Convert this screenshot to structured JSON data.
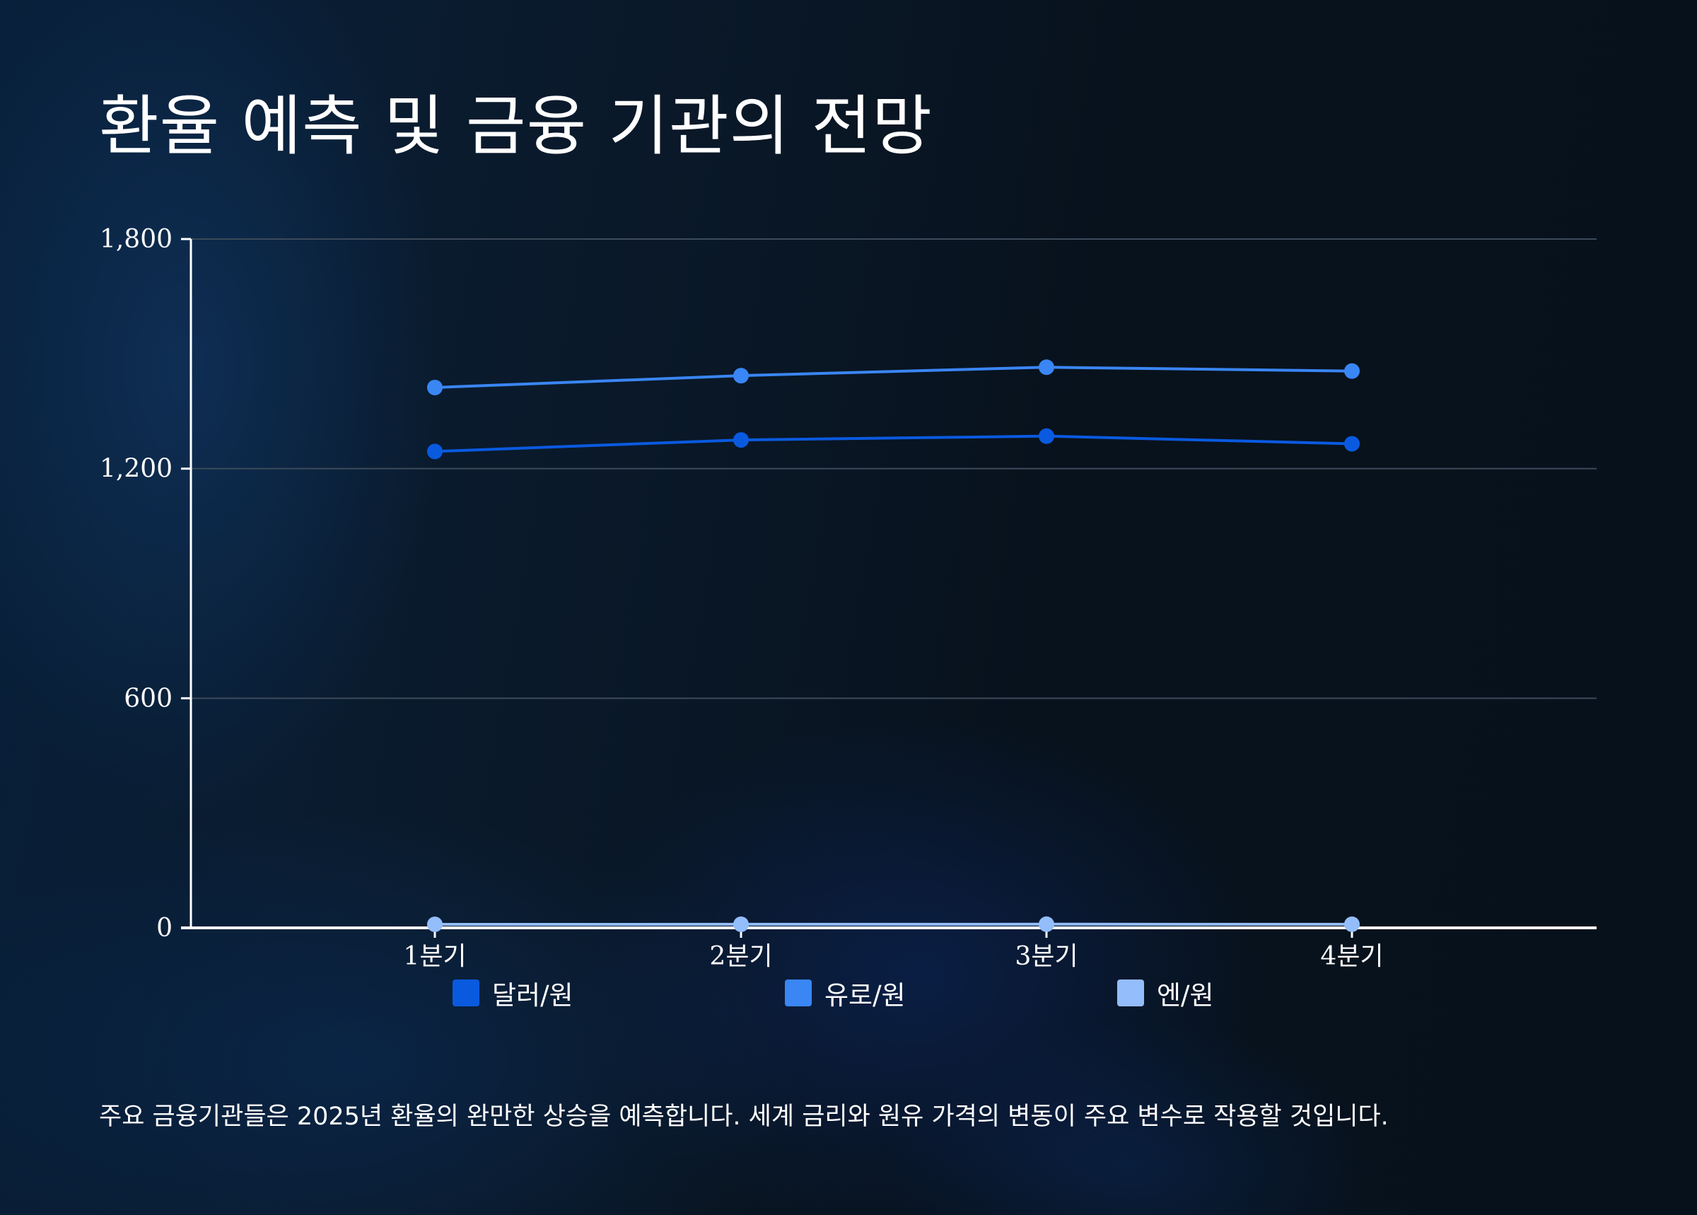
{
  "title": "환율 예측 및 금융 기관의 전망",
  "note": "주요 금융기관들은 2025년 환율의 완만한 상승을 예측합니다. 세계 금리와 원유 가격의 변동이 주요 변수로 작용할 것입니다.",
  "chart_data": {
    "type": "line",
    "categories": [
      "1분기",
      "2분기",
      "3분기",
      "4분기"
    ],
    "yticks": [
      0,
      600,
      1200,
      1800
    ],
    "ytick_labels": [
      "0",
      "600",
      "1,200",
      "1,800"
    ],
    "ylim": [
      0,
      1800
    ],
    "grid": true,
    "legend_position": "bottom",
    "series": [
      {
        "name": "달러/원",
        "values": [
          1245,
          1275,
          1285,
          1265
        ],
        "color": "#0a5ae0"
      },
      {
        "name": "유로/원",
        "values": [
          1412,
          1443,
          1465,
          1455
        ],
        "color": "#3a86f5"
      },
      {
        "name": "엔/원",
        "values": [
          9.2,
          9.4,
          9.6,
          9.5
        ],
        "color": "#93bdfb"
      }
    ]
  }
}
